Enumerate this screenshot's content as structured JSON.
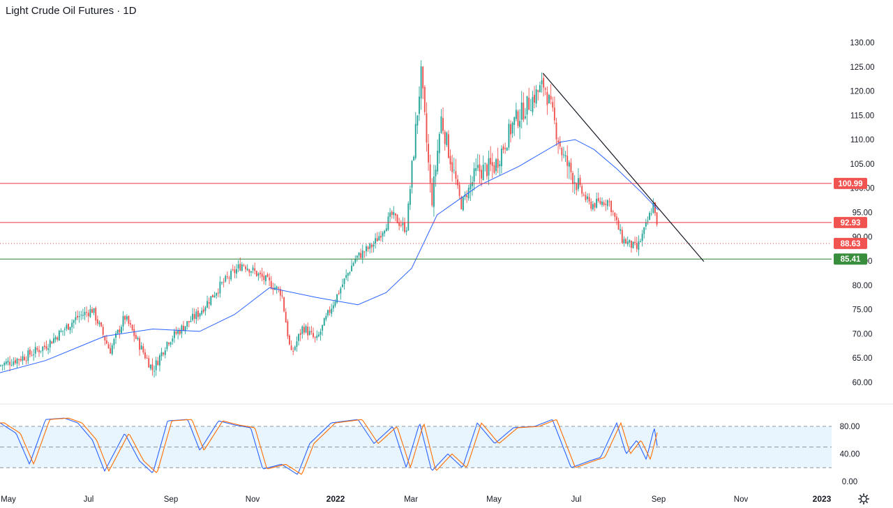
{
  "chart_data": {
    "type": "candlestick",
    "title": "Light Crude Oil Futures · 1D",
    "price_axis": {
      "ticks": [
        "130.00",
        "125.00",
        "120.00",
        "115.00",
        "110.00",
        "105.00",
        "100.00",
        "95.00",
        "90.00",
        "85.00",
        "80.00",
        "75.00",
        "70.00",
        "65.00",
        "60.00"
      ],
      "ylim": [
        57.5,
        132.5
      ]
    },
    "oscillator_axis": {
      "ticks": [
        "80.00",
        "40.00",
        "0.00"
      ],
      "upper_band": 80,
      "lower_band": 20,
      "mid_line": 50,
      "ylim": [
        -5,
        100
      ]
    },
    "time_axis": {
      "labels": [
        "May",
        "Jul",
        "Sep",
        "Nov",
        "2022",
        "Mar",
        "May",
        "Jul",
        "Sep",
        "Nov",
        "2023"
      ],
      "bold_labels": [
        "2022",
        "2023"
      ]
    },
    "horizontal_levels": [
      {
        "value": 100.99,
        "label": "100.99",
        "color": "#f23645",
        "style": "solid"
      },
      {
        "value": 92.93,
        "label": "92.93",
        "color": "#f23645",
        "style": "solid"
      },
      {
        "value": 88.63,
        "label": "88.63",
        "color": "#f23645",
        "style": "dotted"
      },
      {
        "value": 85.41,
        "label": "85.41",
        "color": "#2e7d32",
        "style": "solid"
      }
    ],
    "trendline": {
      "from": {
        "date": "2022-06-07",
        "value": 123.7
      },
      "to": {
        "date": "2022-10-05",
        "value": 84.9
      },
      "color": "#131722"
    },
    "price_keypoints": [
      [
        "2021-04-28",
        63.5
      ],
      [
        "2021-05-18",
        65.5
      ],
      [
        "2021-06-01",
        67.5
      ],
      [
        "2021-06-25",
        73.5
      ],
      [
        "2021-07-06",
        75.0
      ],
      [
        "2021-07-19",
        66.5
      ],
      [
        "2021-07-30",
        73.5
      ],
      [
        "2021-08-20",
        62.5
      ],
      [
        "2021-08-31",
        68.5
      ],
      [
        "2021-09-24",
        74.5
      ],
      [
        "2021-10-08",
        79.5
      ],
      [
        "2021-10-26",
        84.5
      ],
      [
        "2021-11-10",
        81.5
      ],
      [
        "2021-11-24",
        78.5
      ],
      [
        "2021-12-01",
        65.5
      ],
      [
        "2021-12-10",
        71.5
      ],
      [
        "2021-12-20",
        68.5
      ],
      [
        "2021-12-31",
        75.5
      ],
      [
        "2022-01-18",
        85.5
      ],
      [
        "2022-02-01",
        88.5
      ],
      [
        "2022-02-14",
        94.5
      ],
      [
        "2022-02-25",
        91.5
      ],
      [
        "2022-03-08",
        123.5
      ],
      [
        "2022-03-16",
        96.5
      ],
      [
        "2022-03-23",
        114.5
      ],
      [
        "2022-04-07",
        96.5
      ],
      [
        "2022-04-19",
        103.5
      ],
      [
        "2022-05-02",
        104.5
      ],
      [
        "2022-05-16",
        113.5
      ],
      [
        "2022-06-08",
        121.5
      ],
      [
        "2022-06-22",
        106.5
      ],
      [
        "2022-07-05",
        99.5
      ],
      [
        "2022-07-12",
        96.5
      ],
      [
        "2022-07-26",
        97.5
      ],
      [
        "2022-08-05",
        89.5
      ],
      [
        "2022-08-16",
        87.5
      ],
      [
        "2022-08-22",
        91.5
      ],
      [
        "2022-08-29",
        97.2
      ],
      [
        "2022-09-01",
        89.0
      ]
    ],
    "moving_average_keypoints": [
      [
        "2021-04-28",
        62.0
      ],
      [
        "2021-06-01",
        64.5
      ],
      [
        "2021-07-15",
        69.5
      ],
      [
        "2021-08-20",
        71.0
      ],
      [
        "2021-09-24",
        70.5
      ],
      [
        "2021-10-20",
        74.0
      ],
      [
        "2021-11-15",
        79.5
      ],
      [
        "2021-12-20",
        77.5
      ],
      [
        "2022-01-20",
        76.0
      ],
      [
        "2022-02-10",
        78.5
      ],
      [
        "2022-03-01",
        83.5
      ],
      [
        "2022-03-20",
        94.5
      ],
      [
        "2022-04-20",
        100.5
      ],
      [
        "2022-05-20",
        104.5
      ],
      [
        "2022-06-20",
        109.5
      ],
      [
        "2022-07-01",
        110.0
      ],
      [
        "2022-07-15",
        108.0
      ],
      [
        "2022-08-01",
        104.0
      ],
      [
        "2022-08-20",
        99.0
      ],
      [
        "2022-09-01",
        95.5
      ]
    ],
    "stochastic_keypoints": [
      [
        "2021-04-28",
        85
      ],
      [
        "2021-05-10",
        70
      ],
      [
        "2021-05-20",
        25
      ],
      [
        "2021-06-01",
        90
      ],
      [
        "2021-06-15",
        92
      ],
      [
        "2021-06-25",
        85
      ],
      [
        "2021-07-06",
        60
      ],
      [
        "2021-07-15",
        15
      ],
      [
        "2021-07-30",
        70
      ],
      [
        "2021-08-10",
        30
      ],
      [
        "2021-08-20",
        12
      ],
      [
        "2021-08-31",
        88
      ],
      [
        "2021-09-15",
        90
      ],
      [
        "2021-09-24",
        45
      ],
      [
        "2021-10-08",
        88
      ],
      [
        "2021-10-20",
        82
      ],
      [
        "2021-11-01",
        78
      ],
      [
        "2021-11-10",
        18
      ],
      [
        "2021-11-24",
        25
      ],
      [
        "2021-12-06",
        10
      ],
      [
        "2021-12-15",
        55
      ],
      [
        "2021-12-31",
        85
      ],
      [
        "2022-01-20",
        90
      ],
      [
        "2022-02-01",
        55
      ],
      [
        "2022-02-15",
        80
      ],
      [
        "2022-02-25",
        20
      ],
      [
        "2022-03-07",
        85
      ],
      [
        "2022-03-16",
        15
      ],
      [
        "2022-03-28",
        40
      ],
      [
        "2022-04-08",
        20
      ],
      [
        "2022-04-19",
        85
      ],
      [
        "2022-05-02",
        55
      ],
      [
        "2022-05-16",
        78
      ],
      [
        "2022-06-01",
        80
      ],
      [
        "2022-06-14",
        90
      ],
      [
        "2022-06-28",
        20
      ],
      [
        "2022-07-12",
        30
      ],
      [
        "2022-07-20",
        35
      ],
      [
        "2022-08-01",
        85
      ],
      [
        "2022-08-08",
        40
      ],
      [
        "2022-08-16",
        60
      ],
      [
        "2022-08-23",
        32
      ],
      [
        "2022-08-29",
        78
      ],
      [
        "2022-09-01",
        42
      ]
    ]
  }
}
